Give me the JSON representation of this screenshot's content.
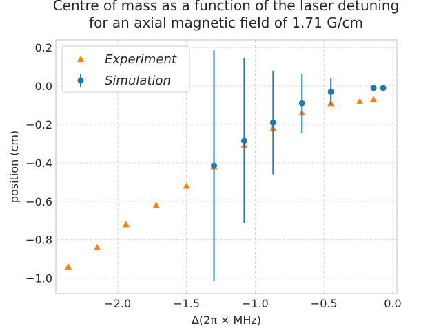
{
  "chart_data": {
    "type": "scatter",
    "title": [
      "Centre of mass as a function of the laser detuning",
      "for an axial magnetic field of 1.71 G/cm"
    ],
    "xlabel": "Δ(2π × MHz)",
    "ylabel": "position (cm)",
    "xlim": [
      -2.45,
      0.03
    ],
    "ylim": [
      -1.08,
      0.24
    ],
    "xticks": [
      -2.0,
      -1.5,
      -1.0,
      -0.5,
      0.0
    ],
    "xtick_labels": [
      "−2.0",
      "−1.5",
      "−1.0",
      "−0.5",
      "0.0"
    ],
    "yticks": [
      0.2,
      0.0,
      -0.2,
      -0.4,
      -0.6,
      -0.8,
      -1.0
    ],
    "ytick_labels": [
      "0.2",
      "0.0",
      "−0.2",
      "−0.4",
      "−0.6",
      "−0.8",
      "−1.0"
    ],
    "grid": true,
    "legend_position": "top-left",
    "series": [
      {
        "name": "Experiment",
        "marker": "triangle",
        "color": "#ff7f0e",
        "x": [
          -2.36,
          -2.15,
          -1.94,
          -1.72,
          -1.5,
          -1.3,
          -1.08,
          -0.87,
          -0.66,
          -0.45,
          -0.24,
          -0.14
        ],
        "y": [
          -0.94,
          -0.84,
          -0.72,
          -0.62,
          -0.52,
          -0.42,
          -0.31,
          -0.22,
          -0.14,
          -0.09,
          -0.08,
          -0.07
        ]
      },
      {
        "name": "Simulation",
        "marker": "circle",
        "color": "#1f77b4",
        "x": [
          -1.3,
          -1.08,
          -0.87,
          -0.66,
          -0.45,
          -0.14,
          -0.07
        ],
        "y": [
          -0.415,
          -0.285,
          -0.19,
          -0.09,
          -0.03,
          -0.01,
          -0.01
        ],
        "yerr": [
          0.6,
          0.43,
          0.27,
          0.155,
          0.07,
          0,
          0
        ]
      }
    ]
  }
}
